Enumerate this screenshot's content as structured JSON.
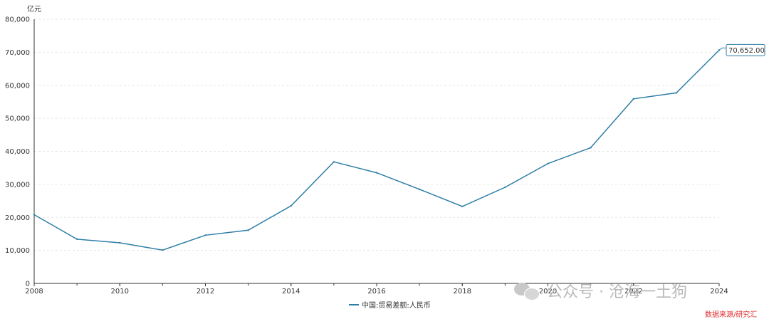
{
  "chart_data": {
    "type": "line",
    "unit_label": "亿元",
    "x": [
      2008,
      2009,
      2010,
      2011,
      2012,
      2013,
      2014,
      2015,
      2016,
      2017,
      2018,
      2019,
      2020,
      2021,
      2022,
      2023,
      2024
    ],
    "x_tick_labels": [
      "2008",
      "2010",
      "2012",
      "2014",
      "2016",
      "2018",
      "2020",
      "2022",
      "2024"
    ],
    "y_tick_labels": [
      "0",
      "10,000",
      "20,000",
      "30,000",
      "40,000",
      "50,000",
      "60,000",
      "70,000",
      "80,000"
    ],
    "ylim": [
      0,
      80000
    ],
    "xlim": [
      2008,
      2024
    ],
    "grid": true,
    "series": [
      {
        "name": "中国:贸易差额:人民币",
        "color": "#2f7ea6",
        "values": [
          20800,
          13400,
          12300,
          10100,
          14600,
          16100,
          23500,
          36800,
          33500,
          28500,
          23300,
          29100,
          36300,
          41100,
          55900,
          57700,
          70652
        ]
      }
    ],
    "annotation": {
      "text": "70,652.00",
      "x": 2024,
      "y": 70652
    },
    "legend_position": "bottom-center"
  },
  "watermark": {
    "text": "公众号 · 沧海一土狗"
  },
  "brand": {
    "text": "数据来源/研究汇"
  }
}
